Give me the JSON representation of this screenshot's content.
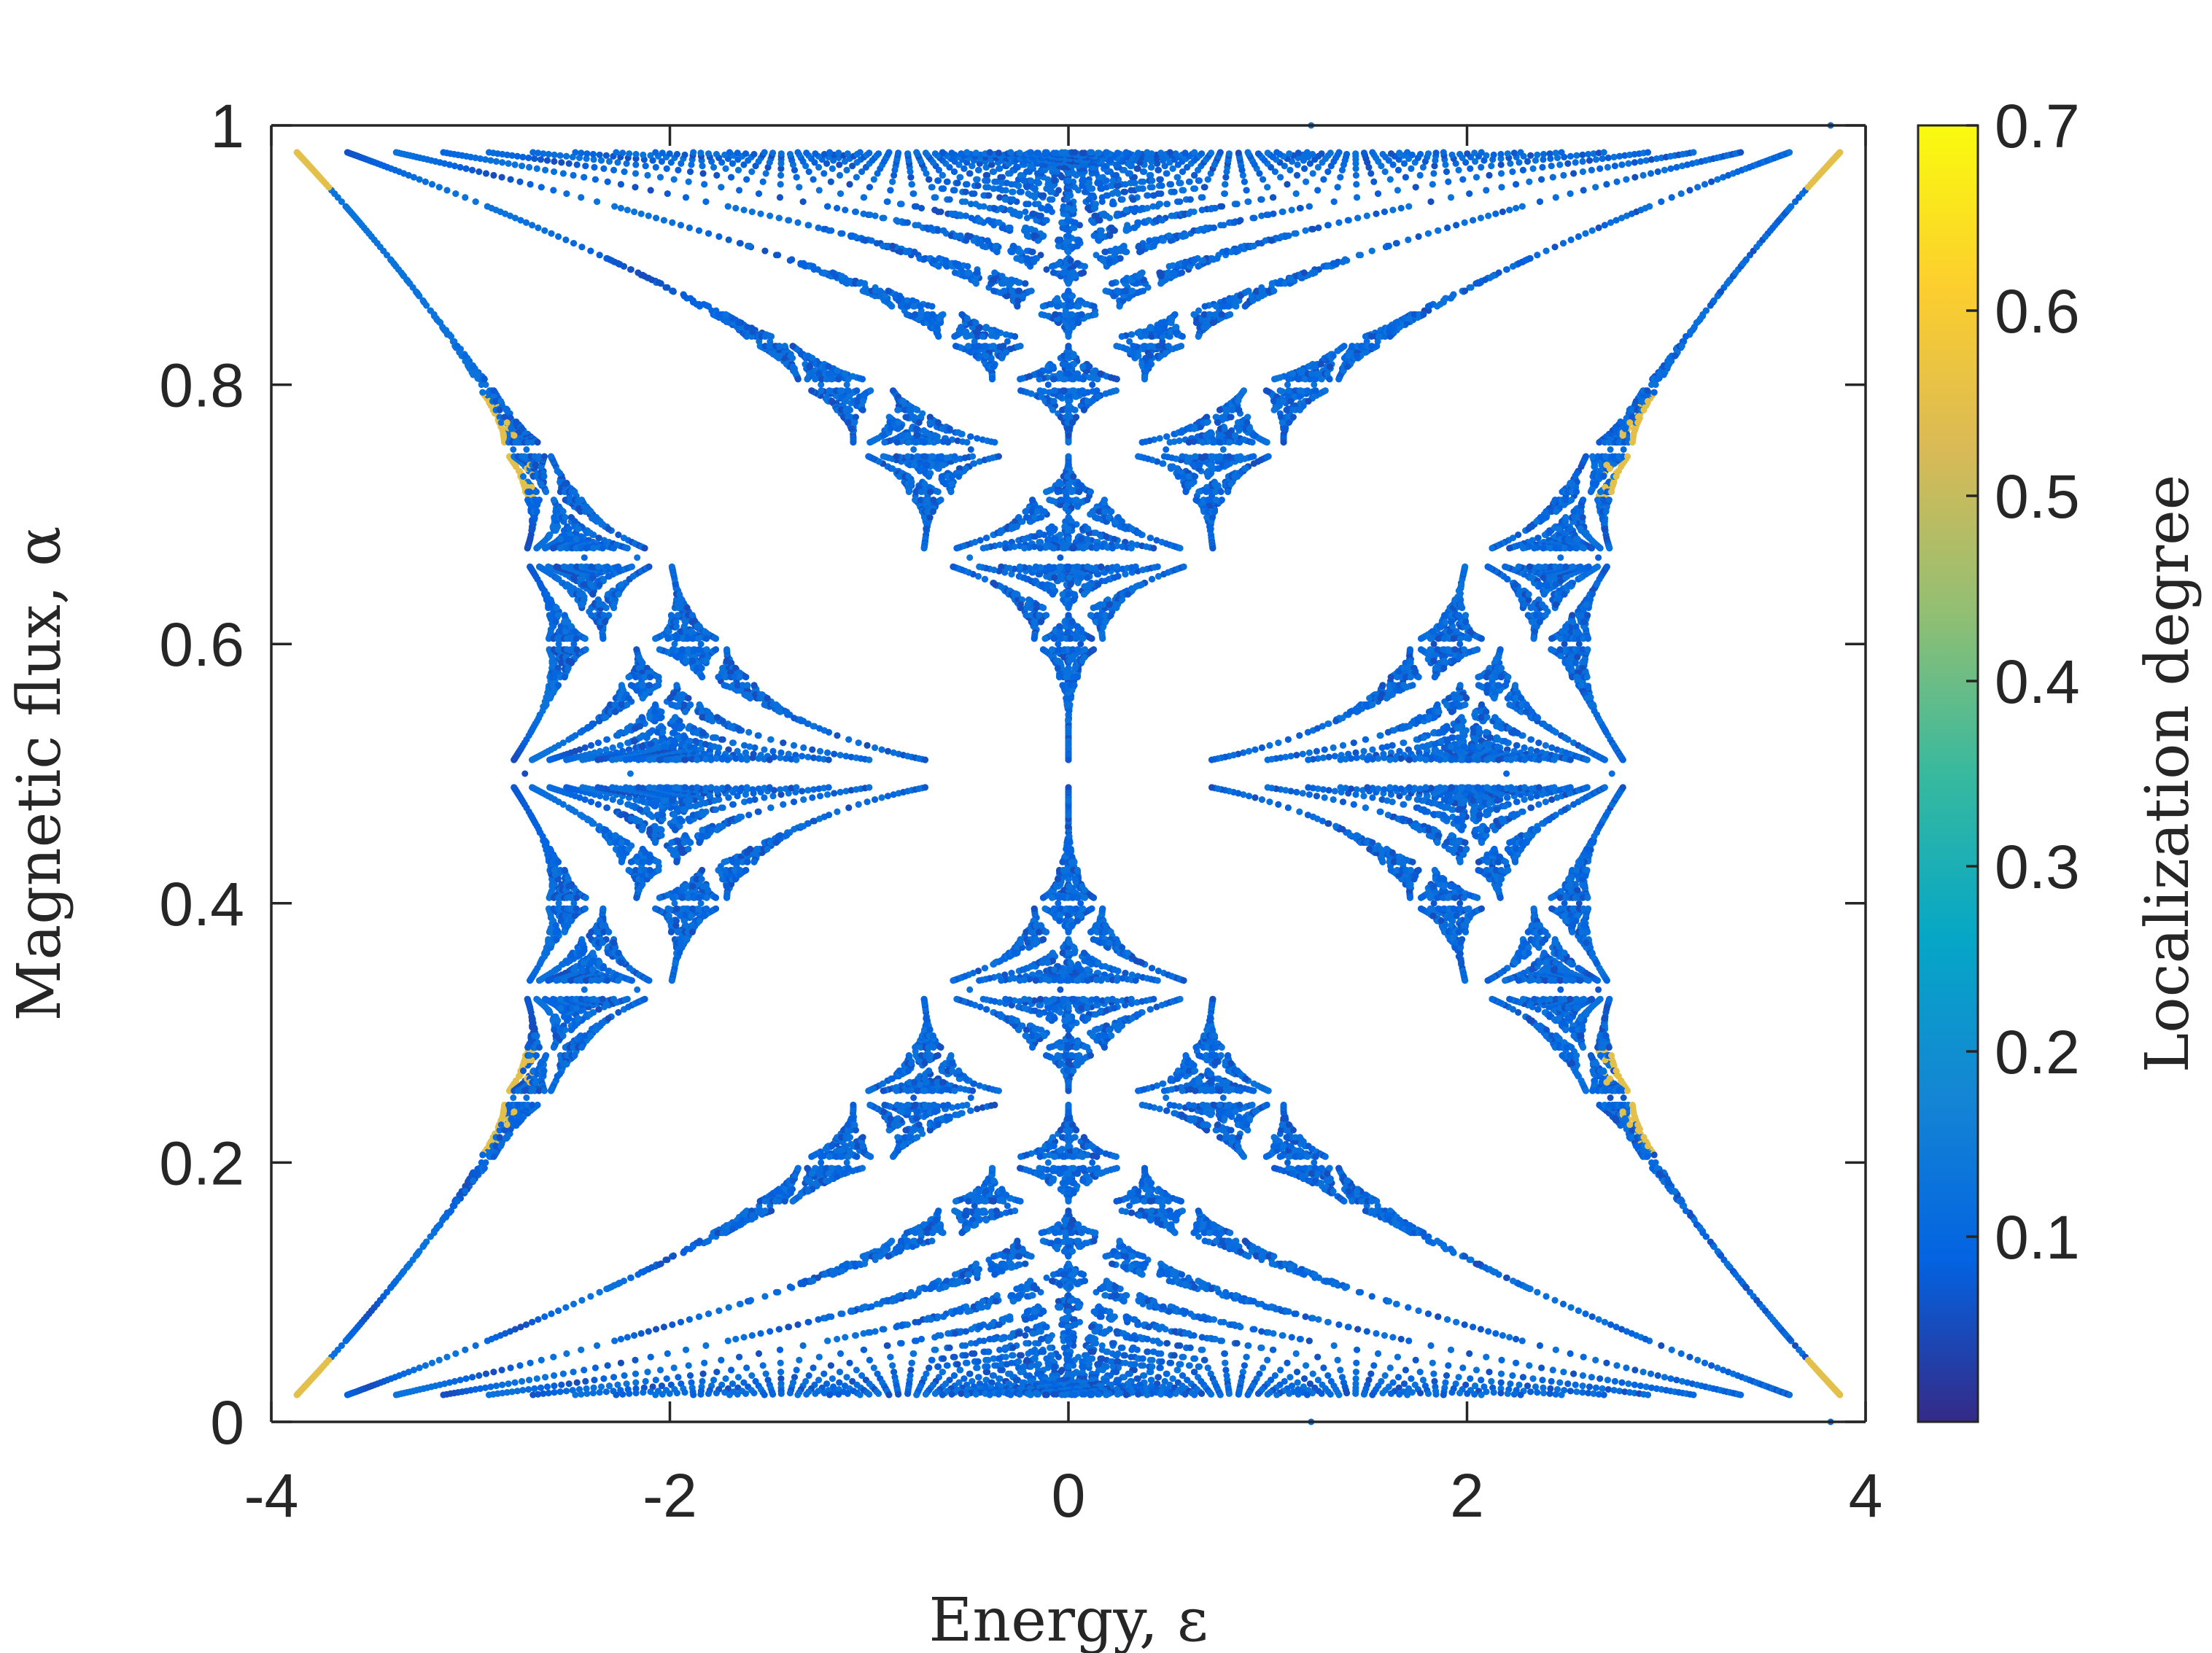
{
  "chart_data": {
    "type": "scatter",
    "title": "",
    "xlabel": "Energy, ε",
    "ylabel": "Magnetic flux, α",
    "xlim": [
      -4,
      4
    ],
    "ylim": [
      0,
      1
    ],
    "x_ticks": [
      "-4",
      "-2",
      "0",
      "2",
      "4"
    ],
    "y_ticks": [
      "0",
      "0.2",
      "0.4",
      "0.6",
      "0.8",
      "1"
    ],
    "colorbar": {
      "label": "Localization degree",
      "range": [
        0,
        0.7
      ],
      "ticks": [
        "0.1",
        "0.2",
        "0.3",
        "0.4",
        "0.5",
        "0.6",
        "0.7"
      ],
      "colormap": "parula",
      "colors": [
        "#352a87",
        "#0363e1",
        "#1485d4",
        "#06a7c6",
        "#38b99e",
        "#92bf73",
        "#d9ba56",
        "#fcce2e",
        "#f9fb0e"
      ]
    },
    "grid": false,
    "description_series": [
      {
        "name": "",
        "note": "Hofstadter butterfly spectrum: eigenvalues of Harper model for rational flux p/q, colored by localization degree"
      }
    ]
  }
}
